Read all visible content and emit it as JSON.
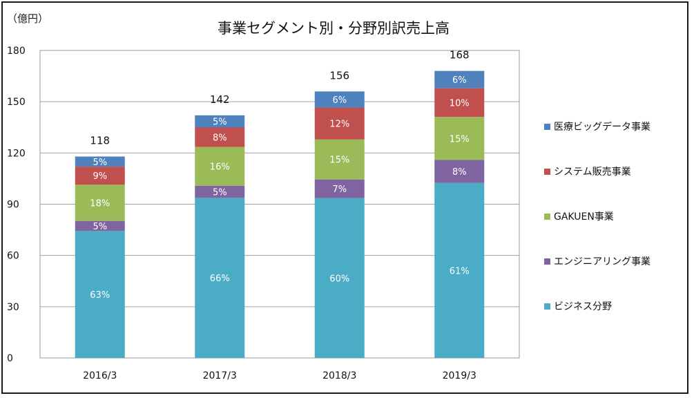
{
  "chart_data": {
    "type": "bar",
    "stacked": true,
    "title": "事業セグメント別・分野別訳売上高",
    "unit_label": "（億円）",
    "categories": [
      "2016/3",
      "2017/3",
      "2018/3",
      "2019/3"
    ],
    "totals": [
      "118",
      "142",
      "156",
      "168"
    ],
    "ylim": [
      0,
      180
    ],
    "yticks": [
      "0",
      "30",
      "60",
      "90",
      "120",
      "150",
      "180"
    ],
    "grid": true,
    "legend_position": "right",
    "series": [
      {
        "name": "ビジネス分野",
        "color": "#4bacc6",
        "values": [
          74.3,
          93.7,
          93.6,
          102.5
        ],
        "labels": [
          "63%",
          "66%",
          "60%",
          "61%"
        ]
      },
      {
        "name": "エンジニアリング事業",
        "color": "#8064a2",
        "values": [
          5.9,
          7.1,
          10.9,
          13.4
        ],
        "labels": [
          "5%",
          "5%",
          "7%",
          "8%"
        ]
      },
      {
        "name": "GAKUEN事業",
        "color": "#9bbb59",
        "values": [
          21.2,
          22.7,
          23.4,
          25.2
        ],
        "labels": [
          "18%",
          "16%",
          "15%",
          "15%"
        ]
      },
      {
        "name": "システム販売事業",
        "color": "#c0504d",
        "values": [
          10.6,
          11.4,
          18.7,
          16.8
        ],
        "labels": [
          "9%",
          "8%",
          "12%",
          "10%"
        ]
      },
      {
        "name": "医療ビッグデータ事業",
        "color": "#4f81bd",
        "values": [
          5.9,
          7.1,
          9.4,
          10.1
        ],
        "labels": [
          "5%",
          "5%",
          "6%",
          "6%"
        ]
      }
    ]
  }
}
